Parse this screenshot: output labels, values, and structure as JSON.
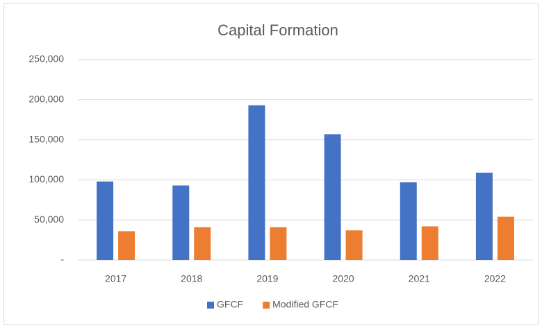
{
  "chart_data": {
    "type": "bar",
    "title": "Capital Formation",
    "categories": [
      "2017",
      "2018",
      "2019",
      "2020",
      "2021",
      "2022"
    ],
    "series": [
      {
        "name": "GFCF",
        "color": "#4472c4",
        "values": [
          98000,
          93000,
          193000,
          157000,
          97000,
          109000
        ]
      },
      {
        "name": "Modified GFCF",
        "color": "#ed7d31",
        "values": [
          36000,
          41000,
          41000,
          37000,
          42000,
          54000
        ]
      }
    ],
    "ylim": [
      0,
      250000
    ],
    "yticks": [
      {
        "value": 0,
        "label": "-"
      },
      {
        "value": 50000,
        "label": "50,000"
      },
      {
        "value": 100000,
        "label": "100,000"
      },
      {
        "value": 150000,
        "label": "150,000"
      },
      {
        "value": 200000,
        "label": "200,000"
      },
      {
        "value": 250000,
        "label": "250,000"
      }
    ],
    "grid": true,
    "legend": "bottom"
  }
}
